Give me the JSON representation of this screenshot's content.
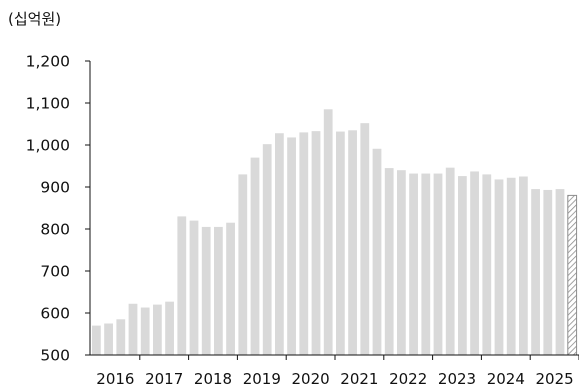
{
  "chart_data": {
    "type": "bar",
    "unit_label": "(십억원)",
    "ylim": [
      500,
      1200
    ],
    "y_ticks": [
      500,
      600,
      700,
      800,
      900,
      1000,
      1100,
      1200
    ],
    "y_tick_labels": [
      "500",
      "600",
      "700",
      "800",
      "900",
      "1,000",
      "1,100",
      "1,200"
    ],
    "x_tick_labels": [
      "2016",
      "2017",
      "2018",
      "2019",
      "2020",
      "2021",
      "2022",
      "2023",
      "2024",
      "2025"
    ],
    "grid": false,
    "bar_color": "#d9d9d9",
    "estimate_fill": "hatched",
    "values": [
      570,
      575,
      585,
      622,
      613,
      620,
      627,
      830,
      820,
      805,
      805,
      815,
      930,
      970,
      1002,
      1028,
      1018,
      1030,
      1033,
      1085,
      1032,
      1035,
      1052,
      991,
      945,
      940,
      932,
      932,
      932,
      946,
      926,
      937,
      930,
      918,
      922,
      925,
      895,
      893,
      895,
      880
    ],
    "estimate_from_index": 39
  }
}
